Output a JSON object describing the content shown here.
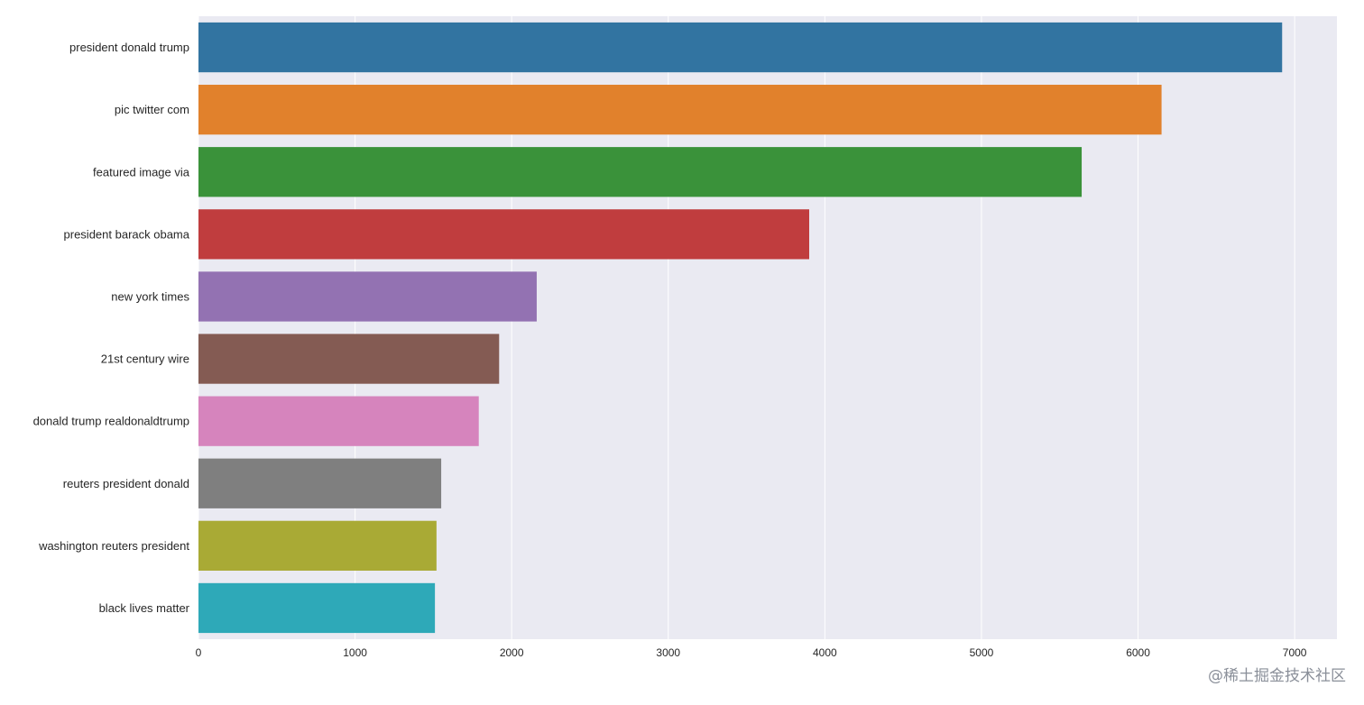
{
  "chart_data": {
    "type": "bar",
    "orientation": "horizontal",
    "categories": [
      "president donald trump",
      "pic twitter com",
      "featured image via",
      "president barack obama",
      "new york times",
      "21st century wire",
      "donald trump realdonaldtrump",
      "reuters president donald",
      "washington reuters president",
      "black lives matter"
    ],
    "values": [
      6920,
      6150,
      5640,
      3900,
      2160,
      1920,
      1790,
      1550,
      1520,
      1510
    ],
    "bar_colors": [
      "#3274a1",
      "#e1812c",
      "#3a923a",
      "#c03d3e",
      "#9372b2",
      "#845b53",
      "#d684bd",
      "#7f7f7f",
      "#a9aa35",
      "#2ea9b8"
    ],
    "xticks": [
      0,
      1000,
      2000,
      3000,
      4000,
      5000,
      6000,
      7000
    ],
    "xlim": [
      0,
      7270
    ],
    "title": "",
    "xlabel": "",
    "ylabel": "",
    "grid": true,
    "background": "#eaeaf2",
    "gridline_color": "#ffffff"
  },
  "watermark": "@稀土掘金技术社区"
}
